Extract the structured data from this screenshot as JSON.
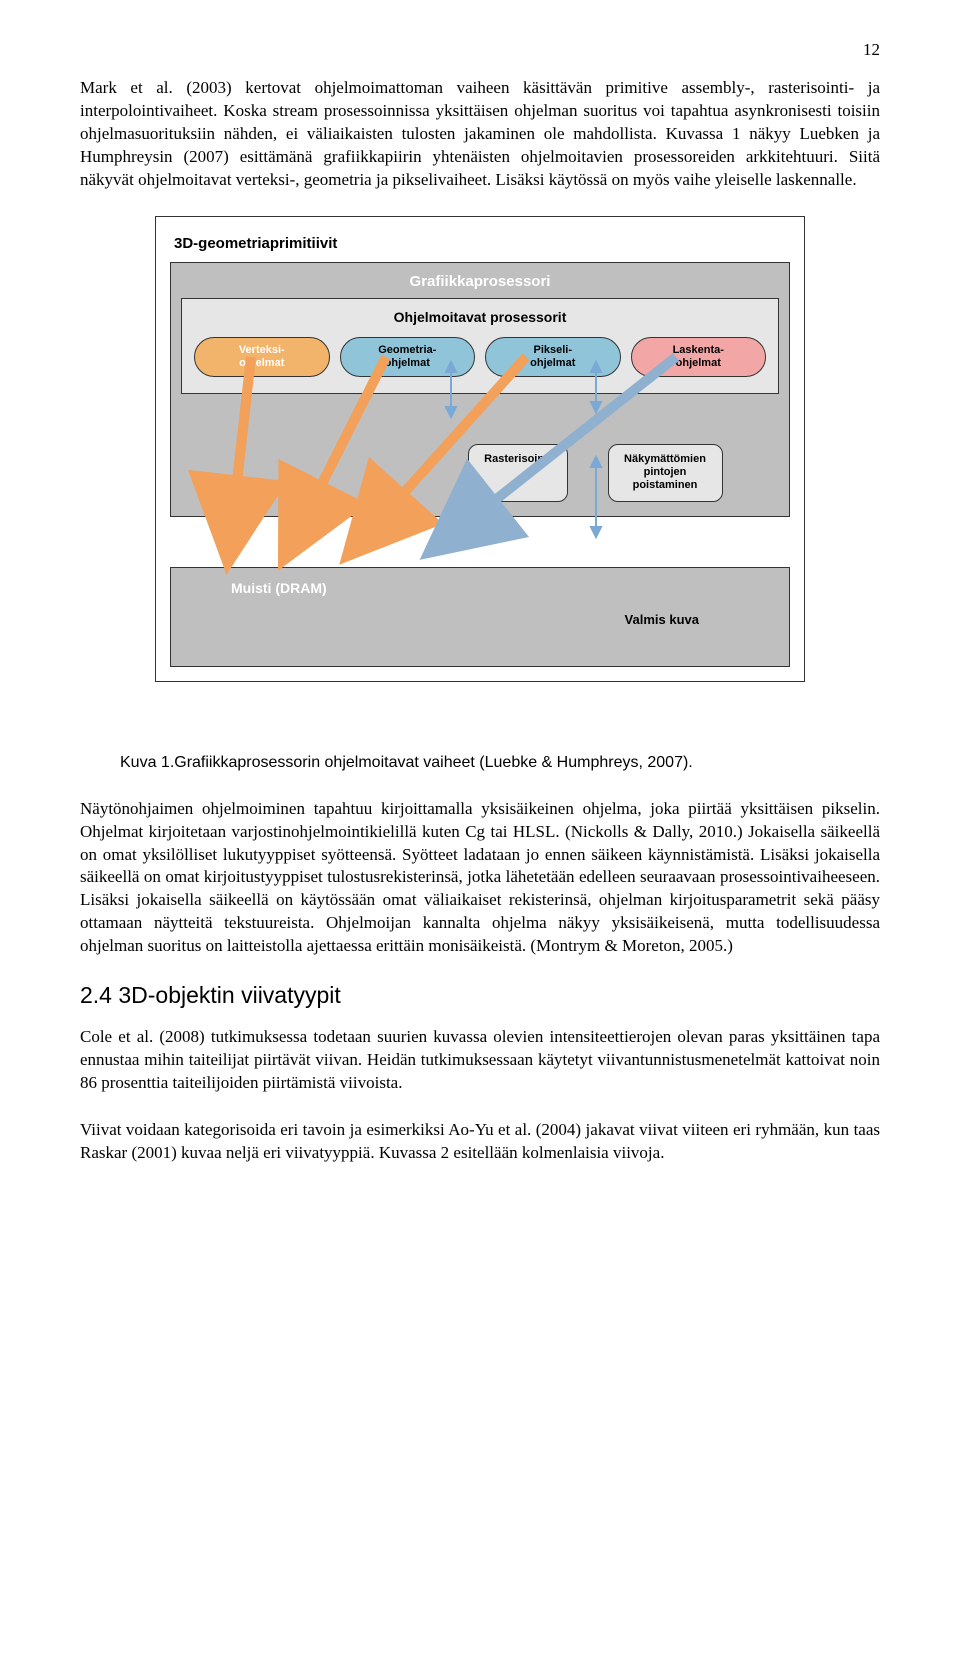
{
  "page_number": "12",
  "para1": "Mark et al. (2003) kertovat ohjelmoimattoman vaiheen käsittävän primitive assembly-, rasterisointi- ja interpolointivaiheet. Koska stream prosessoinnissa yksittäisen ohjelman suoritus voi tapahtua asynkronisesti toisiin ohjelmasuorituksiin nähden, ei väliaikaisten tulosten jakaminen ole mahdollista. Kuvassa 1 näkyy Luebken ja Humphreysin (2007) esittämänä grafiikkapiirin yhtenäisten ohjelmoitavien prosessoreiden arkkitehtuuri. Siitä näkyvät ohjelmoitavat verteksi-, geometria ja pikselivaiheet. Lisäksi käytössä on myös vaihe yleiselle laskennalle.",
  "diagram": {
    "outer_title": "3D-geometriaprimitiivit",
    "gpu_title": "Grafiikkaprosessori",
    "proc_title": "Ohjelmoitavat prosessorit",
    "chips": [
      {
        "label": "Verteksi-\nohjelmat",
        "bg": "#f2b36b",
        "text": "#ffffff"
      },
      {
        "label": "Geometria-\nohjelmat",
        "bg": "#8fc4d9",
        "text": "#000000"
      },
      {
        "label": "Pikseli-\nohjelmat",
        "bg": "#8fc4d9",
        "text": "#000000"
      },
      {
        "label": "Laskenta-\nohjelmat",
        "bg": "#f2a6a6",
        "text": "#000000"
      }
    ],
    "mid": [
      {
        "label": "Rasterisointi",
        "w": 100
      },
      {
        "label": "Näkymättömien\npintojen\npoistaminen",
        "w": 115
      }
    ],
    "dram_label": "Muisti (DRAM)",
    "valmis_label": "Valmis kuva",
    "colors": {
      "outer_bg": "#ffffff",
      "gpu_bg": "#bfbfbf",
      "proc_bg": "#e6e6e6",
      "dram_bg": "#bfbfbf",
      "border": "#333333",
      "arrow_orange": "#f2a05a",
      "arrow_blue": "#8fb0cf",
      "arrow_twoway": "#7aa9d6"
    }
  },
  "caption": "Kuva 1.Grafiikkaprosessorin ohjelmoitavat vaiheet (Luebke & Humphreys, 2007).",
  "para2": "Näytönohjaimen ohjelmoiminen tapahtuu kirjoittamalla yksisäikeinen ohjelma, joka piirtää yksittäisen pikselin. Ohjelmat kirjoitetaan varjostinohjelmointikielillä kuten Cg tai HLSL. (Nickolls & Dally, 2010.) Jokaisella säikeellä on omat yksilölliset lukutyyppiset syötteensä. Syötteet ladataan jo ennen säikeen käynnistämistä. Lisäksi jokaisella säikeellä on omat kirjoitustyyppiset tulostusrekisterinsä, jotka lähetetään edelleen seuraavaan prosessointivaiheeseen. Lisäksi jokaisella säikeellä on käytössään omat väliaikaiset rekisterinsä, ohjelman kirjoitusparametrit sekä pääsy ottamaan näytteitä tekstuureista. Ohjelmoijan kannalta ohjelma näkyy yksisäikeisenä, mutta todellisuudessa ohjelman suoritus on laitteistolla ajettaessa erittäin monisäikeistä. (Montrym & Moreton, 2005.)",
  "sect_head": "2.4  3D-objektin viivatyypit",
  "para3": "Cole et al. (2008) tutkimuksessa todetaan suurien kuvassa olevien intensiteettierojen olevan paras yksittäinen tapa ennustaa mihin taiteilijat piirtävät viivan. Heidän tutkimuksessaan käytetyt viivantunnistusmenetelmät kattoivat noin 86 prosenttia taiteilijoiden piirtämistä viivoista.",
  "para4": "Viivat voidaan kategorisoida eri tavoin ja esimerkiksi Ao-Yu et al. (2004) jakavat viivat viiteen eri ryhmään, kun taas Raskar (2001) kuvaa neljä eri viivatyyppiä. Kuvassa 2 esitellään kolmenlaisia viivoja."
}
